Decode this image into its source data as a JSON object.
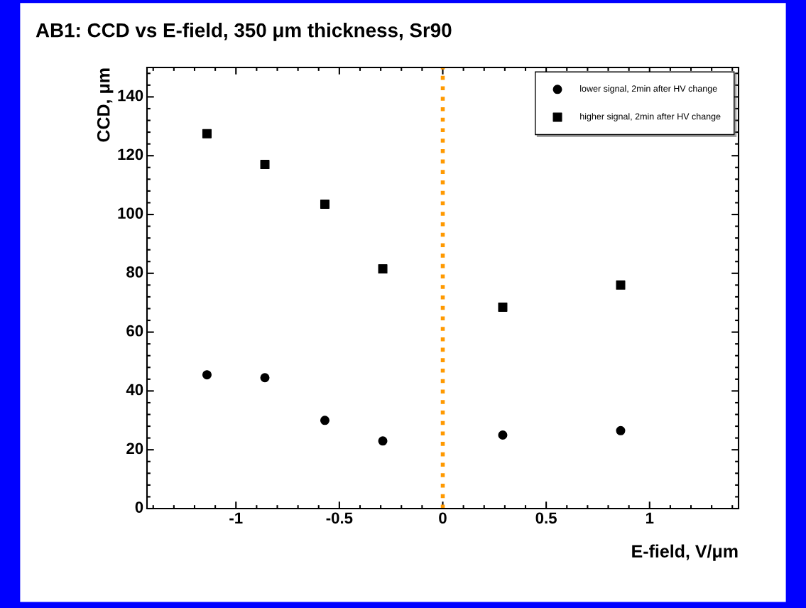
{
  "chart_data": {
    "type": "scatter",
    "title": "AB1: CCD vs E-field, 350 μm thickness, Sr90",
    "xlabel": "E-field, V/μm",
    "ylabel": "CCD, μm",
    "x": [
      -1.14,
      -0.86,
      -0.57,
      -0.29,
      0.29,
      0.86
    ],
    "series": [
      {
        "name": "lower signal, 2min after HV change",
        "color": "#000000",
        "marker": "circle",
        "values": [
          45.5,
          44.5,
          30,
          23,
          25,
          26.5
        ]
      },
      {
        "name": "higher signal, 2min after HV change",
        "color": "#000000",
        "marker": "square",
        "values": [
          127.5,
          117,
          103.5,
          81.5,
          68.5,
          76
        ]
      }
    ],
    "xlim": [
      -1.43,
      1.43
    ],
    "xticks": [
      -1,
      -0.5,
      0,
      0.5,
      1
    ],
    "ylim": [
      0,
      150
    ],
    "yticks": [
      0,
      20,
      40,
      60,
      80,
      100,
      120,
      140
    ],
    "ref_lines": [
      {
        "axis": "x",
        "value": 0,
        "color": "#ff9900",
        "line_style": "dotted"
      }
    ],
    "legend": "top right",
    "grid": false
  }
}
